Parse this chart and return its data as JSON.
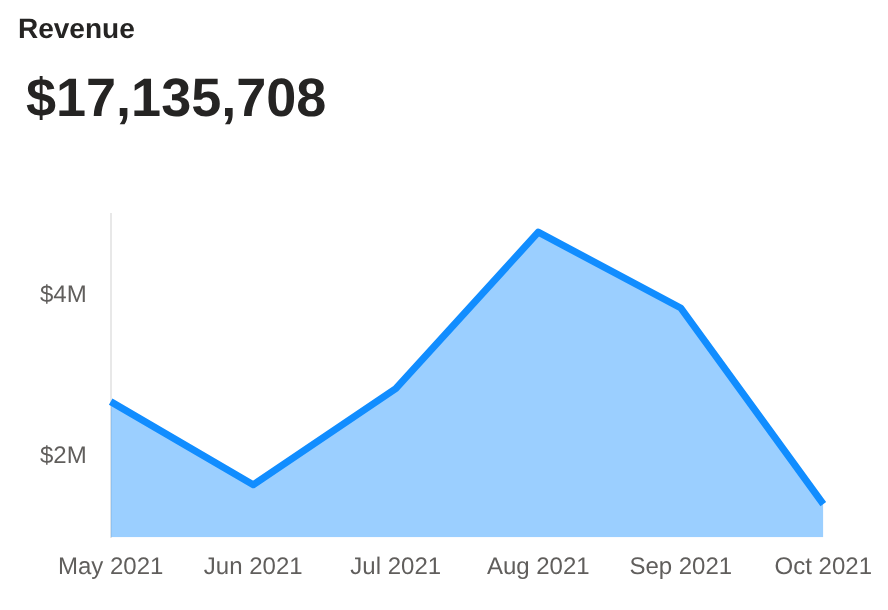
{
  "chart_data": {
    "type": "area",
    "title": "Revenue",
    "subtitle": "$17,135,708",
    "categories": [
      "May 2021",
      "Jun 2021",
      "Jul 2021",
      "Aug 2021",
      "Sep 2021",
      "Oct 2021"
    ],
    "series": [
      {
        "color": "#118dff",
        "values": [
          2680000,
          1650000,
          2840000,
          4780000,
          3840000,
          1410000
        ]
      }
    ],
    "ylim": [
      1000000,
      5000000
    ],
    "yticks": [
      {
        "value": 2000000,
        "label": "$2M"
      },
      {
        "value": 4000000,
        "label": "$4M"
      }
    ],
    "grid": false,
    "legend": false
  }
}
